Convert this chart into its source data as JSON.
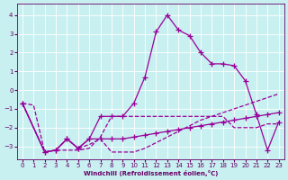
{
  "xlabel": "Windchill (Refroidissement éolien,°C)",
  "bg_color": "#c8f0f0",
  "line_color": "#990099",
  "grid_color": "#b8e8e8",
  "text_color": "#660066",
  "ylim": [
    -3.7,
    4.6
  ],
  "xlim": [
    -0.5,
    23.5
  ],
  "yticks": [
    -3,
    -2,
    -1,
    0,
    1,
    2,
    3,
    4
  ],
  "xticks": [
    0,
    1,
    2,
    3,
    4,
    5,
    6,
    7,
    8,
    9,
    10,
    11,
    12,
    13,
    14,
    15,
    16,
    17,
    18,
    19,
    20,
    21,
    22,
    23
  ],
  "line1_x": [
    0,
    1,
    2,
    3,
    4,
    5,
    6,
    7,
    8,
    9,
    10,
    11,
    12,
    13,
    14,
    15,
    16,
    17,
    18,
    19,
    20,
    21,
    22,
    23
  ],
  "line1_y": [
    -0.7,
    -0.8,
    -3.3,
    -3.2,
    -3.2,
    -3.2,
    -3.1,
    -2.5,
    -1.4,
    -1.4,
    -1.4,
    -1.4,
    -1.4,
    -1.4,
    -1.4,
    -1.4,
    -1.4,
    -1.4,
    -1.4,
    -2.0,
    -2.0,
    -2.0,
    -1.8,
    -1.8
  ],
  "line2_x": [
    0,
    2,
    3,
    4,
    5,
    6,
    7,
    8,
    9,
    10,
    11,
    12,
    13,
    14,
    15,
    16,
    17,
    18,
    19,
    20,
    21,
    22,
    23
  ],
  "line2_y": [
    -0.7,
    -3.3,
    -3.2,
    -2.6,
    -3.1,
    -2.9,
    -2.6,
    -3.3,
    -3.3,
    -3.3,
    -3.1,
    -2.8,
    -2.5,
    -2.2,
    -1.9,
    -1.6,
    -1.4,
    -1.2,
    -1.0,
    -0.8,
    -0.6,
    -0.4,
    -0.2
  ],
  "line3_x": [
    0,
    2,
    3,
    4,
    5,
    6,
    7,
    8,
    9,
    10,
    11,
    12,
    13,
    14,
    15,
    16,
    17,
    18,
    19,
    20,
    21,
    22,
    23
  ],
  "line3_y": [
    -0.7,
    -3.3,
    -3.2,
    -2.6,
    -3.1,
    -2.6,
    -1.4,
    -1.4,
    -1.4,
    -0.7,
    0.7,
    3.1,
    4.0,
    3.2,
    2.9,
    2.0,
    1.4,
    1.4,
    1.3,
    0.5,
    -1.3,
    -3.2,
    -1.7
  ],
  "line4_x": [
    0,
    2,
    3,
    4,
    5,
    6,
    7,
    8,
    9,
    10,
    11,
    12,
    13,
    14,
    15,
    16,
    17,
    18,
    19,
    20,
    21,
    22,
    23
  ],
  "line4_y": [
    -0.7,
    -3.3,
    -3.2,
    -2.6,
    -3.1,
    -2.6,
    -2.6,
    -2.6,
    -2.6,
    -2.5,
    -2.4,
    -2.3,
    -2.2,
    -2.1,
    -2.0,
    -1.9,
    -1.8,
    -1.7,
    -1.6,
    -1.5,
    -1.4,
    -1.3,
    -1.2
  ]
}
